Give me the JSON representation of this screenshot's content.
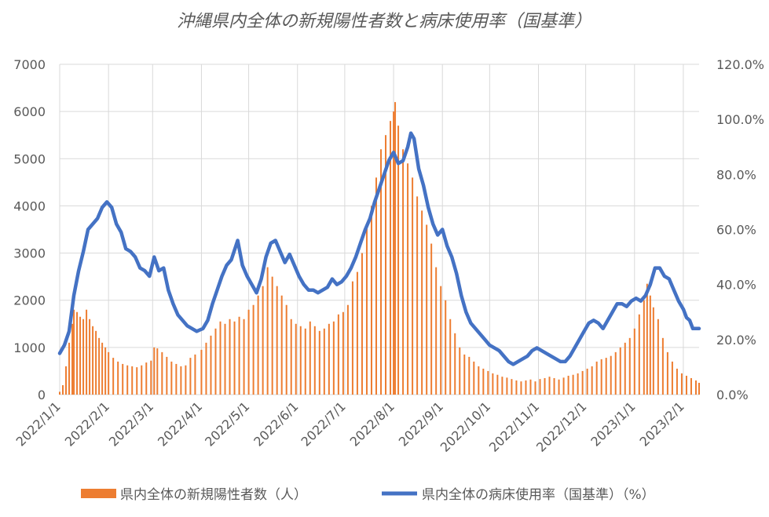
{
  "chart_data": {
    "type": "bar+line",
    "title": "沖縄県内全体の新規陽性者数と病床使用率（国基準）",
    "x_ticks": [
      "2022/1/1",
      "2022/2/1",
      "2022/3/1",
      "2022/4/1",
      "2022/5/1",
      "2022/6/1",
      "2022/7/1",
      "2022/8/1",
      "2022/9/1",
      "2022/10/1",
      "2022/11/1",
      "2022/12/1",
      "2023/1/1",
      "2023/2/1"
    ],
    "x_range": [
      "2022/1/1",
      "2023/2/11"
    ],
    "y_left": {
      "min": 0,
      "max": 7000,
      "step": 1000,
      "ticks": [
        "0",
        "1000",
        "2000",
        "3000",
        "4000",
        "5000",
        "6000",
        "7000"
      ]
    },
    "y_right": {
      "min": 0,
      "max": 120,
      "step": 20,
      "ticks": [
        "0.0%",
        "20.0%",
        "40.0%",
        "60.0%",
        "80.0%",
        "100.0%",
        "120.0%"
      ]
    },
    "grid": true,
    "legend_position": "bottom",
    "series": [
      {
        "name": "県内全体の新規陽性者数（人）",
        "type": "bar",
        "axis": "left",
        "color": "#ED7D31",
        "points": [
          [
            "2022/1/1",
            60
          ],
          [
            "2022/1/3",
            200
          ],
          [
            "2022/1/5",
            600
          ],
          [
            "2022/1/7",
            1100
          ],
          [
            "2022/1/9",
            1500
          ],
          [
            "2022/1/10",
            1800
          ],
          [
            "2022/1/12",
            1750
          ],
          [
            "2022/1/14",
            1650
          ],
          [
            "2022/1/16",
            1600
          ],
          [
            "2022/1/18",
            1800
          ],
          [
            "2022/1/20",
            1600
          ],
          [
            "2022/1/22",
            1450
          ],
          [
            "2022/1/24",
            1350
          ],
          [
            "2022/1/26",
            1200
          ],
          [
            "2022/1/28",
            1100
          ],
          [
            "2022/1/30",
            1000
          ],
          [
            "2022/2/1",
            900
          ],
          [
            "2022/2/4",
            780
          ],
          [
            "2022/2/7",
            700
          ],
          [
            "2022/2/10",
            650
          ],
          [
            "2022/2/13",
            620
          ],
          [
            "2022/2/16",
            600
          ],
          [
            "2022/2/19",
            580
          ],
          [
            "2022/2/22",
            620
          ],
          [
            "2022/2/25",
            680
          ],
          [
            "2022/2/28",
            720
          ],
          [
            "2022/3/2",
            1000
          ],
          [
            "2022/3/4",
            980
          ],
          [
            "2022/3/7",
            900
          ],
          [
            "2022/3/10",
            800
          ],
          [
            "2022/3/13",
            700
          ],
          [
            "2022/3/16",
            650
          ],
          [
            "2022/3/19",
            600
          ],
          [
            "2022/3/22",
            620
          ],
          [
            "2022/3/25",
            780
          ],
          [
            "2022/3/28",
            850
          ],
          [
            "2022/4/1",
            950
          ],
          [
            "2022/4/4",
            1100
          ],
          [
            "2022/4/7",
            1250
          ],
          [
            "2022/4/10",
            1400
          ],
          [
            "2022/4/13",
            1550
          ],
          [
            "2022/4/16",
            1500
          ],
          [
            "2022/4/19",
            1600
          ],
          [
            "2022/4/22",
            1550
          ],
          [
            "2022/4/25",
            1650
          ],
          [
            "2022/4/28",
            1600
          ],
          [
            "2022/5/1",
            1800
          ],
          [
            "2022/5/4",
            1900
          ],
          [
            "2022/5/7",
            2100
          ],
          [
            "2022/5/10",
            2300
          ],
          [
            "2022/5/13",
            2700
          ],
          [
            "2022/5/16",
            2500
          ],
          [
            "2022/5/19",
            2300
          ],
          [
            "2022/5/22",
            2100
          ],
          [
            "2022/5/25",
            1900
          ],
          [
            "2022/5/28",
            1600
          ],
          [
            "2022/5/31",
            1500
          ],
          [
            "2022/6/3",
            1450
          ],
          [
            "2022/6/6",
            1400
          ],
          [
            "2022/6/9",
            1550
          ],
          [
            "2022/6/12",
            1450
          ],
          [
            "2022/6/15",
            1350
          ],
          [
            "2022/6/18",
            1400
          ],
          [
            "2022/6/21",
            1500
          ],
          [
            "2022/6/24",
            1550
          ],
          [
            "2022/6/27",
            1700
          ],
          [
            "2022/6/30",
            1750
          ],
          [
            "2022/7/3",
            1900
          ],
          [
            "2022/7/6",
            2400
          ],
          [
            "2022/7/9",
            2600
          ],
          [
            "2022/7/12",
            3000
          ],
          [
            "2022/7/15",
            3600
          ],
          [
            "2022/7/18",
            4000
          ],
          [
            "2022/7/21",
            4600
          ],
          [
            "2022/7/24",
            5200
          ],
          [
            "2022/7/27",
            5500
          ],
          [
            "2022/7/30",
            5800
          ],
          [
            "2022/8/1",
            6000
          ],
          [
            "2022/8/2",
            6200
          ],
          [
            "2022/8/4",
            5700
          ],
          [
            "2022/8/7",
            5200
          ],
          [
            "2022/8/10",
            4900
          ],
          [
            "2022/8/13",
            4600
          ],
          [
            "2022/8/16",
            4200
          ],
          [
            "2022/8/19",
            3900
          ],
          [
            "2022/8/22",
            3600
          ],
          [
            "2022/8/25",
            3200
          ],
          [
            "2022/8/28",
            2700
          ],
          [
            "2022/8/31",
            2300
          ],
          [
            "2022/9/3",
            2000
          ],
          [
            "2022/9/6",
            1600
          ],
          [
            "2022/9/9",
            1300
          ],
          [
            "2022/9/12",
            1000
          ],
          [
            "2022/9/15",
            850
          ],
          [
            "2022/9/18",
            800
          ],
          [
            "2022/9/21",
            700
          ],
          [
            "2022/9/24",
            600
          ],
          [
            "2022/9/27",
            550
          ],
          [
            "2022/9/30",
            500
          ],
          [
            "2022/10/3",
            450
          ],
          [
            "2022/10/6",
            420
          ],
          [
            "2022/10/9",
            380
          ],
          [
            "2022/10/12",
            360
          ],
          [
            "2022/10/15",
            330
          ],
          [
            "2022/10/18",
            300
          ],
          [
            "2022/10/21",
            280
          ],
          [
            "2022/10/24",
            300
          ],
          [
            "2022/10/27",
            320
          ],
          [
            "2022/10/30",
            280
          ],
          [
            "2022/11/2",
            330
          ],
          [
            "2022/11/5",
            350
          ],
          [
            "2022/11/8",
            380
          ],
          [
            "2022/11/11",
            350
          ],
          [
            "2022/11/14",
            320
          ],
          [
            "2022/11/17",
            360
          ],
          [
            "2022/11/20",
            400
          ],
          [
            "2022/11/23",
            420
          ],
          [
            "2022/11/26",
            450
          ],
          [
            "2022/11/29",
            500
          ],
          [
            "2022/12/2",
            550
          ],
          [
            "2022/12/5",
            600
          ],
          [
            "2022/12/8",
            700
          ],
          [
            "2022/12/11",
            750
          ],
          [
            "2022/12/14",
            780
          ],
          [
            "2022/12/17",
            820
          ],
          [
            "2022/12/20",
            900
          ],
          [
            "2022/12/23",
            1000
          ],
          [
            "2022/12/26",
            1100
          ],
          [
            "2022/12/29",
            1200
          ],
          [
            "2023/1/1",
            1400
          ],
          [
            "2023/1/4",
            1700
          ],
          [
            "2023/1/7",
            2000
          ],
          [
            "2023/1/9",
            2350
          ],
          [
            "2023/1/11",
            2100
          ],
          [
            "2023/1/13",
            1850
          ],
          [
            "2023/1/16",
            1600
          ],
          [
            "2023/1/19",
            1200
          ],
          [
            "2023/1/22",
            900
          ],
          [
            "2023/1/25",
            700
          ],
          [
            "2023/1/28",
            550
          ],
          [
            "2023/1/31",
            450
          ],
          [
            "2023/2/3",
            400
          ],
          [
            "2023/2/6",
            350
          ],
          [
            "2023/2/9",
            300
          ],
          [
            "2023/2/11",
            250
          ]
        ]
      },
      {
        "name": "県内全体の病床使用率（国基準）（%）",
        "type": "line",
        "axis": "right",
        "color": "#4472C4",
        "points": [
          [
            "2022/1/1",
            15
          ],
          [
            "2022/1/4",
            18
          ],
          [
            "2022/1/7",
            23
          ],
          [
            "2022/1/10",
            36
          ],
          [
            "2022/1/13",
            45
          ],
          [
            "2022/1/16",
            52
          ],
          [
            "2022/1/19",
            60
          ],
          [
            "2022/1/22",
            62
          ],
          [
            "2022/1/25",
            64
          ],
          [
            "2022/1/28",
            68
          ],
          [
            "2022/1/31",
            70
          ],
          [
            "2022/2/3",
            68
          ],
          [
            "2022/2/6",
            62
          ],
          [
            "2022/2/9",
            59
          ],
          [
            "2022/2/12",
            53
          ],
          [
            "2022/2/15",
            52
          ],
          [
            "2022/2/18",
            50
          ],
          [
            "2022/2/21",
            46
          ],
          [
            "2022/2/24",
            45
          ],
          [
            "2022/2/27",
            43
          ],
          [
            "2022/3/2",
            50
          ],
          [
            "2022/3/5",
            45
          ],
          [
            "2022/3/8",
            46
          ],
          [
            "2022/3/11",
            38
          ],
          [
            "2022/3/14",
            33
          ],
          [
            "2022/3/17",
            29
          ],
          [
            "2022/3/20",
            27
          ],
          [
            "2022/3/23",
            25
          ],
          [
            "2022/3/26",
            24
          ],
          [
            "2022/3/29",
            23
          ],
          [
            "2022/4/2",
            24
          ],
          [
            "2022/4/5",
            27
          ],
          [
            "2022/4/8",
            33
          ],
          [
            "2022/4/11",
            38
          ],
          [
            "2022/4/14",
            43
          ],
          [
            "2022/4/17",
            47
          ],
          [
            "2022/4/20",
            49
          ],
          [
            "2022/4/24",
            56
          ],
          [
            "2022/4/27",
            47
          ],
          [
            "2022/4/30",
            43
          ],
          [
            "2022/5/3",
            40
          ],
          [
            "2022/5/6",
            37
          ],
          [
            "2022/5/9",
            42
          ],
          [
            "2022/5/12",
            50
          ],
          [
            "2022/5/15",
            55
          ],
          [
            "2022/5/18",
            56
          ],
          [
            "2022/5/21",
            52
          ],
          [
            "2022/5/24",
            48
          ],
          [
            "2022/5/27",
            51
          ],
          [
            "2022/5/30",
            47
          ],
          [
            "2022/6/2",
            43
          ],
          [
            "2022/6/5",
            40
          ],
          [
            "2022/6/8",
            38
          ],
          [
            "2022/6/11",
            38
          ],
          [
            "2022/6/14",
            37
          ],
          [
            "2022/6/17",
            38
          ],
          [
            "2022/6/20",
            39
          ],
          [
            "2022/6/23",
            42
          ],
          [
            "2022/6/26",
            40
          ],
          [
            "2022/6/29",
            41
          ],
          [
            "2022/7/2",
            43
          ],
          [
            "2022/7/5",
            46
          ],
          [
            "2022/7/8",
            50
          ],
          [
            "2022/7/11",
            55
          ],
          [
            "2022/7/14",
            60
          ],
          [
            "2022/7/17",
            64
          ],
          [
            "2022/7/20",
            70
          ],
          [
            "2022/7/23",
            75
          ],
          [
            "2022/7/26",
            80
          ],
          [
            "2022/7/29",
            85
          ],
          [
            "2022/8/1",
            88
          ],
          [
            "2022/8/4",
            84
          ],
          [
            "2022/8/7",
            85
          ],
          [
            "2022/8/10",
            90
          ],
          [
            "2022/8/12",
            95
          ],
          [
            "2022/8/14",
            93
          ],
          [
            "2022/8/17",
            82
          ],
          [
            "2022/8/20",
            76
          ],
          [
            "2022/8/23",
            68
          ],
          [
            "2022/8/26",
            62
          ],
          [
            "2022/8/29",
            58
          ],
          [
            "2022/9/1",
            60
          ],
          [
            "2022/9/4",
            54
          ],
          [
            "2022/9/7",
            50
          ],
          [
            "2022/9/10",
            44
          ],
          [
            "2022/9/13",
            36
          ],
          [
            "2022/9/16",
            30
          ],
          [
            "2022/9/19",
            26
          ],
          [
            "2022/9/22",
            24
          ],
          [
            "2022/9/25",
            22
          ],
          [
            "2022/9/28",
            20
          ],
          [
            "2022/10/1",
            18
          ],
          [
            "2022/10/4",
            17
          ],
          [
            "2022/10/7",
            16
          ],
          [
            "2022/10/10",
            14
          ],
          [
            "2022/10/13",
            12
          ],
          [
            "2022/10/16",
            11
          ],
          [
            "2022/10/19",
            12
          ],
          [
            "2022/10/22",
            13
          ],
          [
            "2022/10/25",
            14
          ],
          [
            "2022/10/28",
            16
          ],
          [
            "2022/10/31",
            17
          ],
          [
            "2022/11/3",
            16
          ],
          [
            "2022/11/6",
            15
          ],
          [
            "2022/11/9",
            14
          ],
          [
            "2022/11/12",
            13
          ],
          [
            "2022/11/15",
            12
          ],
          [
            "2022/11/18",
            12
          ],
          [
            "2022/11/21",
            14
          ],
          [
            "2022/11/24",
            17
          ],
          [
            "2022/11/27",
            20
          ],
          [
            "2022/11/30",
            23
          ],
          [
            "2022/12/3",
            26
          ],
          [
            "2022/12/6",
            27
          ],
          [
            "2022/12/9",
            26
          ],
          [
            "2022/12/12",
            24
          ],
          [
            "2022/12/15",
            27
          ],
          [
            "2022/12/18",
            30
          ],
          [
            "2022/12/21",
            33
          ],
          [
            "2022/12/24",
            33
          ],
          [
            "2022/12/27",
            32
          ],
          [
            "2022/12/30",
            34
          ],
          [
            "2023/1/2",
            35
          ],
          [
            "2023/1/5",
            34
          ],
          [
            "2023/1/8",
            36
          ],
          [
            "2023/1/11",
            40
          ],
          [
            "2023/1/14",
            46
          ],
          [
            "2023/1/17",
            46
          ],
          [
            "2023/1/20",
            43
          ],
          [
            "2023/1/23",
            42
          ],
          [
            "2023/1/26",
            38
          ],
          [
            "2023/1/29",
            34
          ],
          [
            "2023/2/1",
            31
          ],
          [
            "2023/2/3",
            28
          ],
          [
            "2023/2/5",
            27
          ],
          [
            "2023/2/7",
            24
          ],
          [
            "2023/2/9",
            24
          ],
          [
            "2023/2/11",
            24
          ]
        ]
      }
    ]
  }
}
